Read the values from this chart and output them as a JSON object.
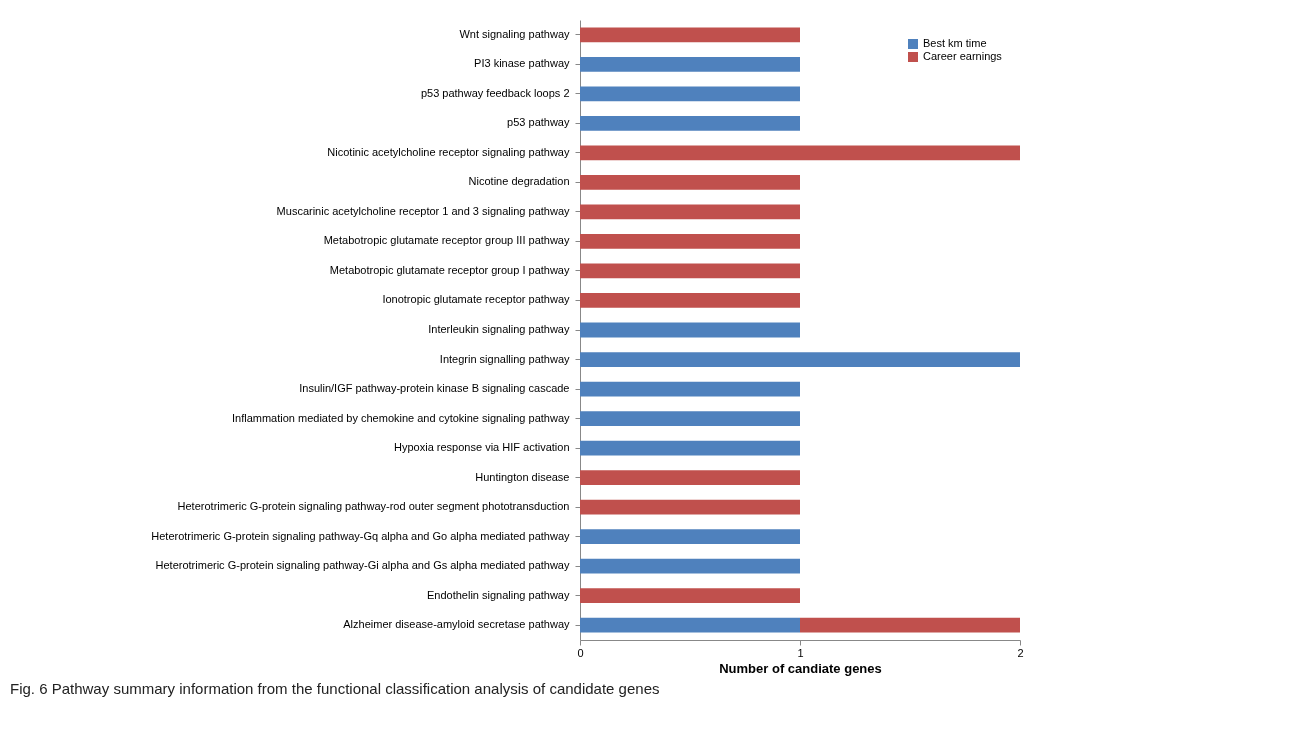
{
  "chart_data": {
    "type": "bar",
    "orientation": "horizontal",
    "stacked": true,
    "categories": [
      "Wnt signaling pathway",
      "PI3 kinase pathway",
      "p53 pathway feedback loops 2",
      "p53 pathway",
      "Nicotinic acetylcholine receptor signaling pathway",
      "Nicotine degradation",
      "Muscarinic acetylcholine receptor 1 and 3 signaling pathway",
      "Metabotropic glutamate receptor group III pathway",
      "Metabotropic glutamate receptor group I pathway",
      "Ionotropic glutamate receptor pathway",
      "Interleukin signaling pathway",
      "Integrin signalling pathway",
      "Insulin/IGF pathway-protein kinase B signaling cascade",
      "Inflammation mediated by chemokine and cytokine signaling pathway",
      "Hypoxia response via HIF activation",
      "Huntington disease",
      "Heterotrimeric G-protein signaling pathway-rod outer segment phototransduction",
      "Heterotrimeric G-protein signaling pathway-Gq alpha and Go alpha mediated pathway",
      "Heterotrimeric G-protein signaling pathway-Gi alpha and Gs alpha mediated pathway",
      "Endothelin signaling pathway",
      "Alzheimer disease-amyloid secretase pathway"
    ],
    "series": [
      {
        "name": "Best km time",
        "color": "#4f81bd",
        "values": [
          null,
          1,
          1,
          1,
          null,
          null,
          null,
          null,
          null,
          null,
          1,
          2,
          1,
          1,
          1,
          null,
          null,
          1,
          1,
          null,
          1
        ]
      },
      {
        "name": "Career earnings",
        "color": "#c0504d",
        "values": [
          1,
          null,
          null,
          null,
          2,
          1,
          1,
          1,
          1,
          1,
          null,
          null,
          null,
          null,
          null,
          1,
          1,
          null,
          null,
          1,
          1
        ]
      }
    ],
    "xlabel": "Number of candiate genes",
    "xlim": [
      0,
      2
    ],
    "xticks": [
      0,
      1,
      2
    ],
    "grid": false,
    "legend": "top right",
    "annotations": [
      "Fig. 6 Pathway summary information from the functional classification analysis of candidate genes"
    ]
  }
}
